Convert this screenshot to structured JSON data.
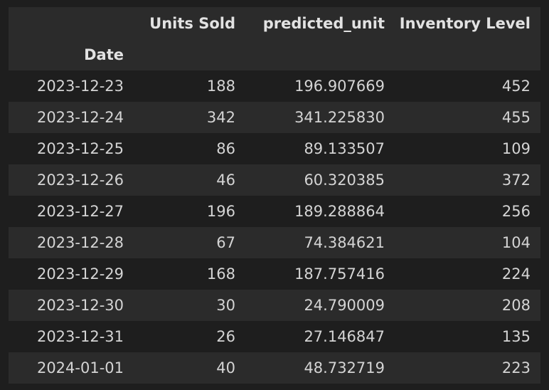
{
  "table": {
    "columns": [
      "Units Sold",
      "predicted_unit",
      "Inventory Level"
    ],
    "index_name": "Date",
    "rows": [
      {
        "date": "2023-12-23",
        "units_sold": "188",
        "predicted_unit": "196.907669",
        "inventory_level": "452"
      },
      {
        "date": "2023-12-24",
        "units_sold": "342",
        "predicted_unit": "341.225830",
        "inventory_level": "455"
      },
      {
        "date": "2023-12-25",
        "units_sold": "86",
        "predicted_unit": "89.133507",
        "inventory_level": "109"
      },
      {
        "date": "2023-12-26",
        "units_sold": "46",
        "predicted_unit": "60.320385",
        "inventory_level": "372"
      },
      {
        "date": "2023-12-27",
        "units_sold": "196",
        "predicted_unit": "189.288864",
        "inventory_level": "256"
      },
      {
        "date": "2023-12-28",
        "units_sold": "67",
        "predicted_unit": "74.384621",
        "inventory_level": "104"
      },
      {
        "date": "2023-12-29",
        "units_sold": "168",
        "predicted_unit": "187.757416",
        "inventory_level": "224"
      },
      {
        "date": "2023-12-30",
        "units_sold": "30",
        "predicted_unit": "24.790009",
        "inventory_level": "208"
      },
      {
        "date": "2023-12-31",
        "units_sold": "26",
        "predicted_unit": "27.146847",
        "inventory_level": "135"
      },
      {
        "date": "2024-01-01",
        "units_sold": "40",
        "predicted_unit": "48.732719",
        "inventory_level": "223"
      }
    ]
  },
  "colors": {
    "background": "#1e1e1e",
    "row_shade": "#2b2b2b",
    "text": "#d4d4d4"
  }
}
